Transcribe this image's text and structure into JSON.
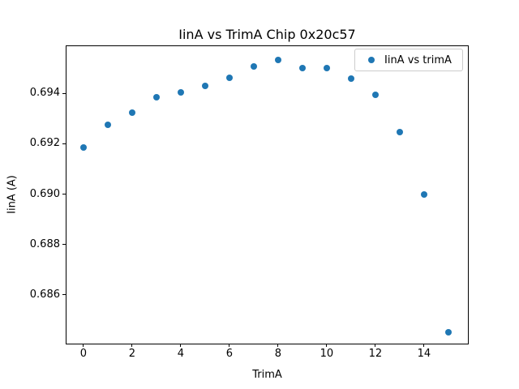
{
  "figure": {
    "background": "#ffffff"
  },
  "chart_data": {
    "type": "scatter",
    "title": "IinA vs TrimA Chip 0x20c57",
    "xlabel": "TrimA",
    "ylabel": "IinA (A)",
    "series": [
      {
        "name": "IinA vs trimA",
        "x": [
          0,
          1,
          2,
          3,
          4,
          5,
          6,
          7,
          8,
          9,
          10,
          11,
          12,
          13,
          14,
          15
        ],
        "y": [
          0.69185,
          0.69276,
          0.69323,
          0.69384,
          0.69403,
          0.6943,
          0.69462,
          0.69505,
          0.69533,
          0.695,
          0.69499,
          0.69457,
          0.69394,
          0.69246,
          0.68998,
          0.68452
        ]
      }
    ],
    "xlim": [
      -0.73,
      15.77
    ],
    "ylim": [
      0.6841,
      0.6959
    ],
    "x_ticks": [
      0,
      2,
      4,
      6,
      8,
      10,
      12,
      14
    ],
    "y_ticks": [
      0.686,
      0.688,
      0.69,
      0.692,
      0.694
    ],
    "y_tick_decimals": 3,
    "grid": false,
    "marker_color": "#1f77b4",
    "legend": {
      "position": "upper right",
      "entries": [
        "IinA vs trimA"
      ]
    }
  }
}
